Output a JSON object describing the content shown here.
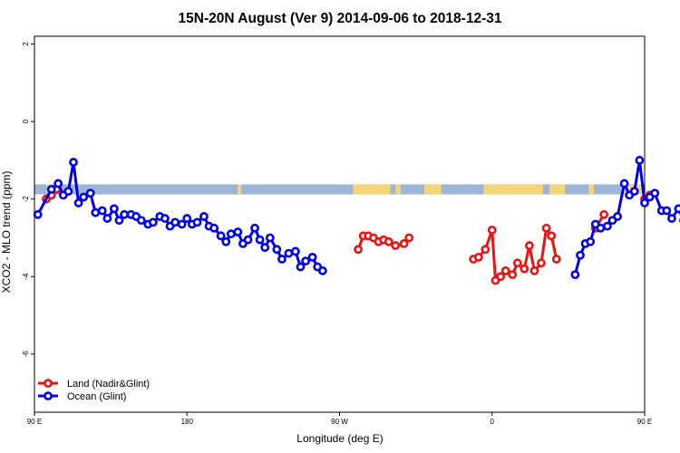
{
  "chart_data": {
    "type": "line",
    "title": "15N-20N August (Ver 9)   2014-09-06 to 2018-12-31",
    "xlabel": "Longitude (deg E)",
    "ylabel": "XCO2 - MLO trend (ppm)",
    "xlim": [
      90,
      450
    ],
    "ylim": [
      -7.5,
      2.2
    ],
    "x_ticks": [
      {
        "value": 90,
        "label": "90 E"
      },
      {
        "value": 180,
        "label": "180"
      },
      {
        "value": 270,
        "label": "90 W"
      },
      {
        "value": 360,
        "label": "0"
      },
      {
        "value": 450,
        "label": "90 E"
      },
      {
        "value": 540,
        "label": "180"
      }
    ],
    "y_ticks": [
      2,
      0,
      -2,
      -4,
      -6
    ],
    "legend_position": "bottom-left",
    "grid": false,
    "land_strip": {
      "y_range": [
        -1.88,
        -1.62
      ],
      "ocean_color": "#9db5d8",
      "land_color": "#f5d57a",
      "land_segments": [
        [
          97,
          100
        ],
        [
          210,
          212
        ],
        [
          278,
          300
        ],
        [
          303,
          306
        ],
        [
          320,
          330
        ],
        [
          355,
          390
        ],
        [
          394,
          403
        ],
        [
          417,
          420
        ],
        [
          436,
          449
        ],
        [
          451,
          458
        ]
      ]
    },
    "series": [
      {
        "name": "Land (Nadir&Glint)",
        "color": "#ee1111",
        "segments": [
          [
            [
              97,
              -2.0
            ],
            [
              100,
              -1.9
            ],
            [
              103,
              -1.75
            ]
          ],
          [
            [
              281,
              -3.3
            ],
            [
              284,
              -2.95
            ],
            [
              287,
              -2.95
            ],
            [
              290,
              -3.0
            ],
            [
              293,
              -3.1
            ],
            [
              296,
              -3.05
            ],
            [
              299,
              -3.1
            ],
            [
              303,
              -3.2
            ],
            [
              308,
              -3.15
            ],
            [
              311,
              -3.0
            ]
          ],
          [
            [
              349,
              -3.55
            ],
            [
              352,
              -3.5
            ],
            [
              356,
              -3.3
            ],
            [
              360,
              -2.8
            ],
            [
              362,
              -4.1
            ],
            [
              365,
              -4.0
            ],
            [
              368,
              -3.85
            ],
            [
              372,
              -3.95
            ],
            [
              375,
              -3.65
            ],
            [
              379,
              -3.8
            ],
            [
              382,
              -3.2
            ],
            [
              385,
              -3.85
            ],
            [
              389,
              -3.65
            ],
            [
              392,
              -2.75
            ],
            [
              395,
              -2.95
            ],
            [
              398,
              -3.55
            ]
          ],
          [
            [
              421,
              -2.75
            ],
            [
              426,
              -2.4
            ]
          ],
          [
            [
              450,
              -2.0
            ],
            [
              453,
              -1.9
            ]
          ]
        ]
      },
      {
        "name": "Ocean (Glint)",
        "color": "#0000ee",
        "segments": [
          [
            [
              92,
              -2.4
            ],
            [
              100,
              -1.75
            ],
            [
              104,
              -1.6
            ],
            [
              107,
              -1.9
            ],
            [
              110,
              -1.8
            ],
            [
              113,
              -1.05
            ],
            [
              116,
              -2.1
            ],
            [
              119,
              -1.95
            ],
            [
              123,
              -1.85
            ],
            [
              126,
              -2.35
            ],
            [
              130,
              -2.3
            ],
            [
              133,
              -2.5
            ],
            [
              137,
              -2.25
            ],
            [
              140,
              -2.55
            ],
            [
              143,
              -2.4
            ],
            [
              147,
              -2.4
            ],
            [
              150,
              -2.45
            ],
            [
              153,
              -2.55
            ],
            [
              157,
              -2.65
            ],
            [
              160,
              -2.6
            ],
            [
              164,
              -2.45
            ],
            [
              167,
              -2.5
            ],
            [
              170,
              -2.7
            ],
            [
              173,
              -2.6
            ],
            [
              177,
              -2.65
            ],
            [
              180,
              -2.5
            ],
            [
              183,
              -2.65
            ],
            [
              186,
              -2.6
            ],
            [
              190,
              -2.45
            ],
            [
              193,
              -2.7
            ],
            [
              196,
              -2.75
            ],
            [
              200,
              -2.95
            ],
            [
              203,
              -3.1
            ],
            [
              206,
              -2.9
            ],
            [
              210,
              -2.85
            ],
            [
              213,
              -3.15
            ],
            [
              216,
              -3.05
            ],
            [
              220,
              -2.75
            ],
            [
              223,
              -3.05
            ],
            [
              226,
              -3.25
            ],
            [
              229,
              -3.0
            ],
            [
              233,
              -3.3
            ],
            [
              236,
              -3.55
            ],
            [
              240,
              -3.4
            ],
            [
              244,
              -3.35
            ],
            [
              247,
              -3.75
            ],
            [
              250,
              -3.6
            ],
            [
              254,
              -3.5
            ],
            [
              257,
              -3.75
            ],
            [
              260,
              -3.85
            ]
          ],
          [
            [
              409,
              -3.95
            ],
            [
              412,
              -3.45
            ],
            [
              415,
              -3.15
            ],
            [
              418,
              -3.1
            ],
            [
              421,
              -2.65
            ],
            [
              424,
              -2.75
            ],
            [
              428,
              -2.7
            ],
            [
              431,
              -2.55
            ],
            [
              434,
              -2.45
            ],
            [
              438,
              -1.6
            ],
            [
              441,
              -1.9
            ],
            [
              444,
              -1.8
            ],
            [
              447,
              -1.0
            ],
            [
              450,
              -2.1
            ],
            [
              453,
              -1.95
            ],
            [
              456,
              -1.85
            ],
            [
              460,
              -2.3
            ],
            [
              463,
              -2.3
            ],
            [
              466,
              -2.5
            ],
            [
              470,
              -2.25
            ],
            [
              473,
              -2.55
            ],
            [
              476,
              -2.4
            ],
            [
              480,
              -2.4
            ],
            [
              483,
              -2.45
            ]
          ]
        ]
      }
    ]
  }
}
